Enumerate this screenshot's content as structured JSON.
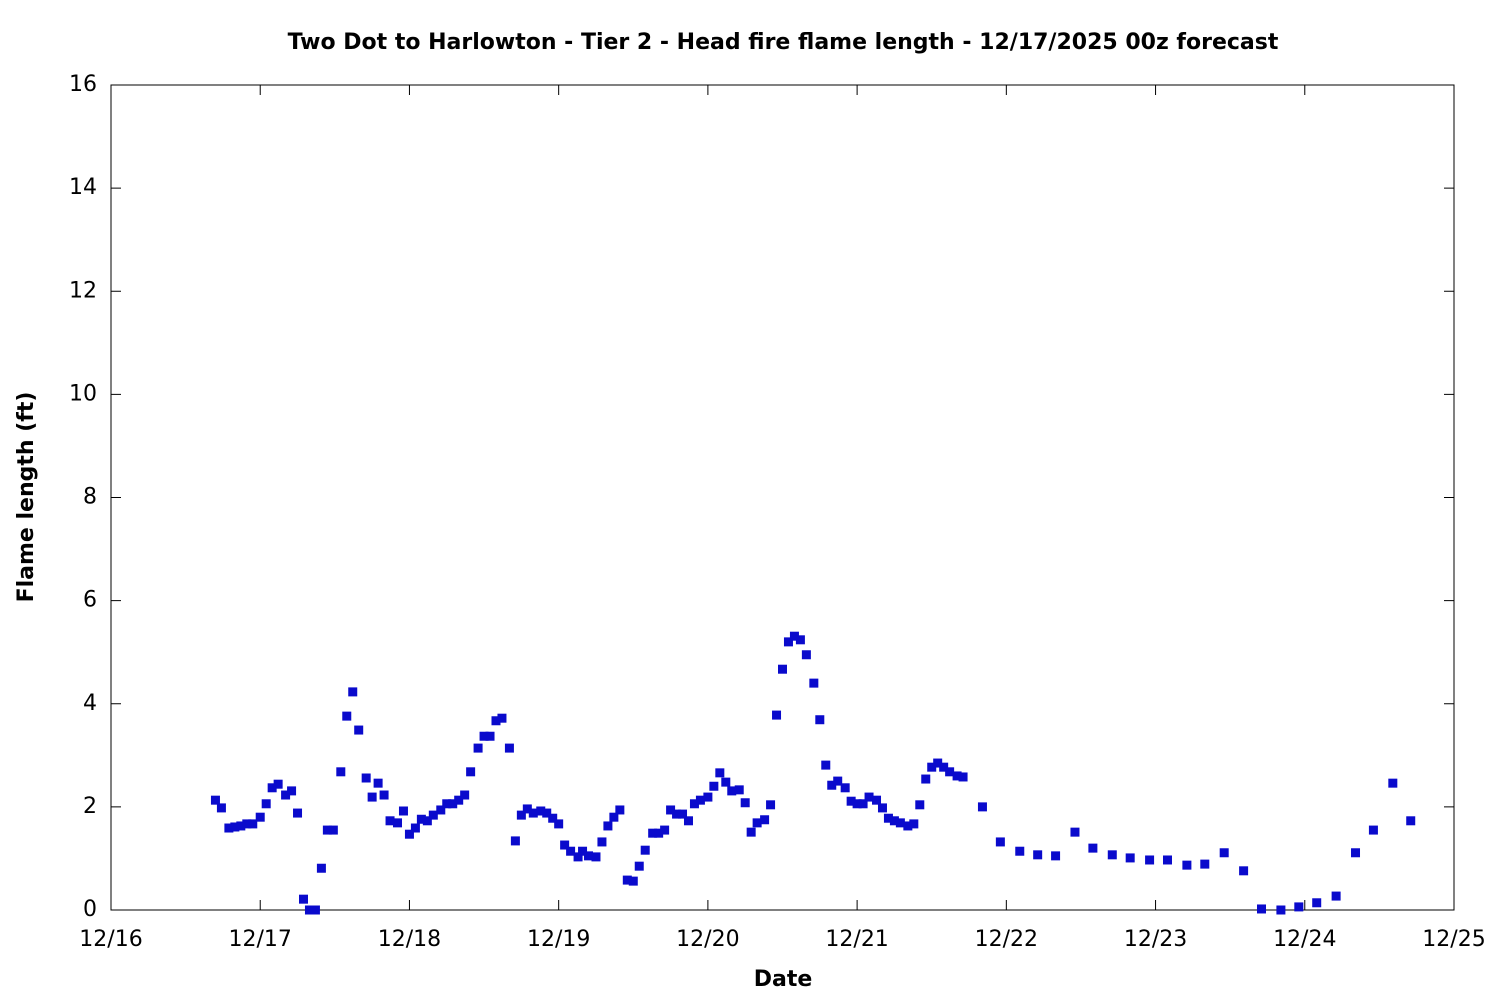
{
  "chart_data": {
    "type": "scatter",
    "title": "Two Dot to Harlowton - Tier 2 - Head fire flame length - 12/17/2025 00z forecast",
    "xlabel": "Date",
    "ylabel": "Flame length (ft)",
    "xlim": [
      16,
      25
    ],
    "xticks": [
      {
        "value": 16,
        "label": "12/16"
      },
      {
        "value": 17,
        "label": "12/17"
      },
      {
        "value": 18,
        "label": "12/18"
      },
      {
        "value": 19,
        "label": "12/19"
      },
      {
        "value": 20,
        "label": "12/20"
      },
      {
        "value": 21,
        "label": "12/21"
      },
      {
        "value": 22,
        "label": "12/22"
      },
      {
        "value": 23,
        "label": "12/23"
      },
      {
        "value": 24,
        "label": "12/24"
      },
      {
        "value": 25,
        "label": "12/25"
      }
    ],
    "ylim": [
      0,
      16
    ],
    "yticks": [
      0,
      2,
      4,
      6,
      8,
      10,
      12,
      14,
      16
    ],
    "series": [
      {
        "color": "#0a0acc",
        "x": [
          16.7,
          16.74,
          16.79,
          16.83,
          16.87,
          16.91,
          16.95,
          17.0,
          17.04,
          17.08,
          17.12,
          17.17,
          17.21,
          17.25,
          17.29,
          17.33,
          17.37,
          17.41,
          17.45,
          17.49,
          17.54,
          17.58,
          17.62,
          17.66,
          17.71,
          17.75,
          17.79,
          17.83,
          17.87,
          17.92,
          17.96,
          18.0,
          18.04,
          18.08,
          18.12,
          18.16,
          18.21,
          18.25,
          18.29,
          18.33,
          18.37,
          18.41,
          18.46,
          18.5,
          18.54,
          18.58,
          18.62,
          18.67,
          18.71,
          18.75,
          18.79,
          18.83,
          18.88,
          18.92,
          18.96,
          19.0,
          19.04,
          19.08,
          19.13,
          19.16,
          19.2,
          19.25,
          19.29,
          19.33,
          19.37,
          19.41,
          19.46,
          19.5,
          19.54,
          19.58,
          19.63,
          19.67,
          19.71,
          19.75,
          19.79,
          19.83,
          19.87,
          19.91,
          19.95,
          20.0,
          20.04,
          20.08,
          20.12,
          20.16,
          20.21,
          20.25,
          20.29,
          20.33,
          20.38,
          20.42,
          20.46,
          20.5,
          20.54,
          20.58,
          20.62,
          20.66,
          20.71,
          20.75,
          20.79,
          20.83,
          20.87,
          20.92,
          20.96,
          21.0,
          21.04,
          21.08,
          21.13,
          21.17,
          21.21,
          21.25,
          21.29,
          21.34,
          21.38,
          21.42,
          21.46,
          21.5,
          21.54,
          21.58,
          21.62,
          21.67,
          21.71,
          21.84,
          21.96,
          22.09,
          22.21,
          22.33,
          22.46,
          22.58,
          22.71,
          22.83,
          22.96,
          23.08,
          23.21,
          23.33,
          23.46,
          23.59,
          23.71,
          23.84,
          23.96,
          24.08,
          24.21,
          24.34,
          24.46,
          24.59,
          24.71
        ],
        "values": [
          2.13,
          1.98,
          1.59,
          1.61,
          1.63,
          1.67,
          1.67,
          1.8,
          2.06,
          2.37,
          2.44,
          2.23,
          2.31,
          1.88,
          0.21,
          0,
          0,
          0.81,
          1.55,
          1.55,
          2.68,
          3.76,
          4.23,
          3.49,
          2.56,
          2.19,
          2.46,
          2.23,
          1.73,
          1.69,
          1.92,
          1.47,
          1.59,
          1.76,
          1.73,
          1.84,
          1.94,
          2.06,
          2.06,
          2.13,
          2.23,
          2.68,
          3.14,
          3.37,
          3.37,
          3.67,
          3.72,
          3.14,
          1.34,
          1.84,
          1.96,
          1.88,
          1.92,
          1.88,
          1.78,
          1.67,
          1.26,
          1.14,
          1.03,
          1.14,
          1.05,
          1.03,
          1.32,
          1.63,
          1.8,
          1.94,
          0.58,
          0.56,
          0.85,
          1.16,
          1.49,
          1.49,
          1.55,
          1.94,
          1.86,
          1.86,
          1.73,
          2.06,
          2.13,
          2.19,
          2.4,
          2.66,
          2.48,
          2.31,
          2.33,
          2.08,
          1.51,
          1.69,
          1.75,
          2.04,
          3.78,
          4.67,
          5.2,
          5.31,
          5.24,
          4.95,
          4.4,
          3.69,
          2.81,
          2.42,
          2.5,
          2.37,
          2.11,
          2.06,
          2.06,
          2.19,
          2.13,
          1.98,
          1.78,
          1.73,
          1.69,
          1.63,
          1.67,
          2.04,
          2.54,
          2.77,
          2.85,
          2.77,
          2.68,
          2.6,
          2.58,
          2.0,
          1.32,
          1.14,
          1.07,
          1.05,
          1.51,
          1.2,
          1.07,
          1.01,
          0.97,
          0.97,
          0.87,
          0.89,
          1.11,
          0.76,
          0.02,
          0,
          0.06,
          0.14,
          0.27,
          1.11,
          1.55,
          2.46,
          1.73
        ]
      }
    ]
  }
}
